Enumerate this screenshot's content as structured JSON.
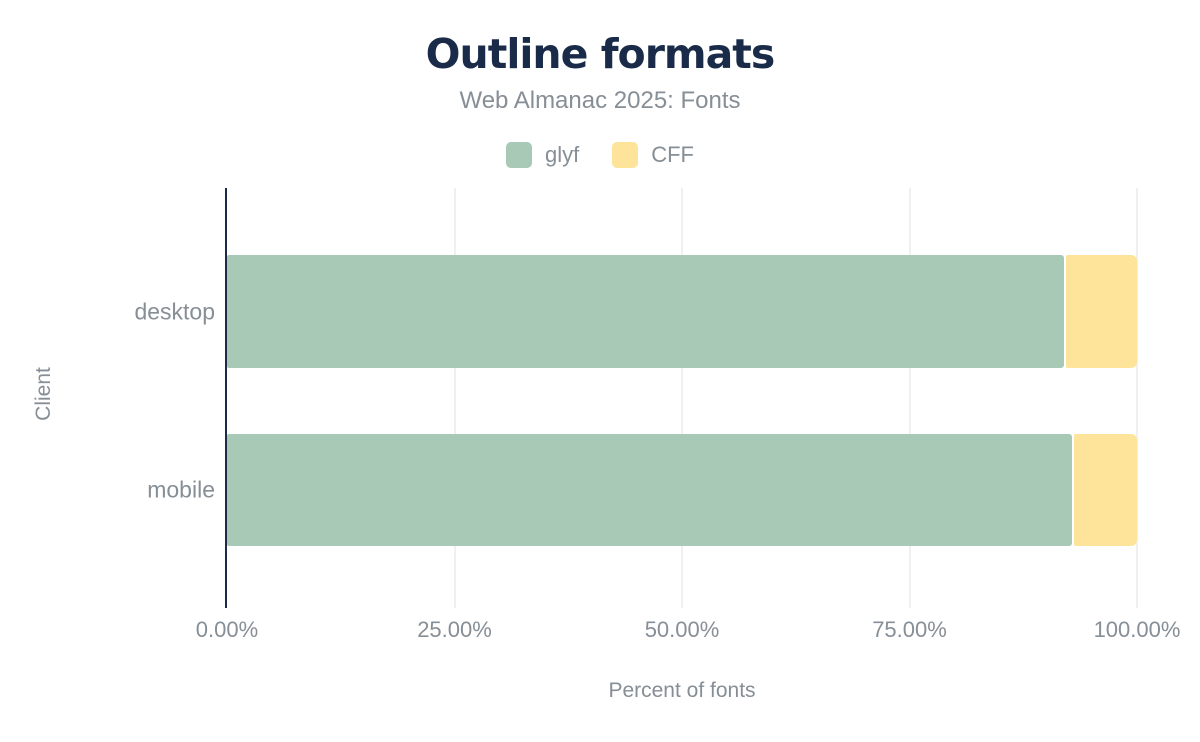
{
  "chart": {
    "title": "Outline formats",
    "subtitle": "Web Almanac 2025: Fonts",
    "x_axis_title": "Percent of fonts",
    "y_axis_title": "Client",
    "x_ticks": [
      "0.00%",
      "25.00%",
      "50.00%",
      "75.00%",
      "100.00%"
    ]
  },
  "chart_data": {
    "type": "bar",
    "orientation": "horizontal",
    "stacked": true,
    "title": "Outline formats",
    "subtitle": "Web Almanac 2025: Fonts",
    "xlabel": "Percent of fonts",
    "ylabel": "Client",
    "categories": [
      "desktop",
      "mobile"
    ],
    "series": [
      {
        "name": "glyf",
        "color": "#a8c9b6",
        "values": [
          92.0,
          92.9
        ]
      },
      {
        "name": "CFF",
        "color": "#fde49a",
        "values": [
          8.0,
          7.1
        ]
      }
    ],
    "xlim": [
      0,
      100
    ],
    "x_tick_labels": [
      "0.00%",
      "25.00%",
      "50.00%",
      "75.00%",
      "100.00%"
    ],
    "grid": "vertical",
    "legend_position": "top"
  },
  "colors": {
    "background": "#ffffff",
    "title": "#1a2b49",
    "axis_line": "#1a2b49",
    "text_gray": "#868e96",
    "gridline": "#f0f0f0"
  }
}
